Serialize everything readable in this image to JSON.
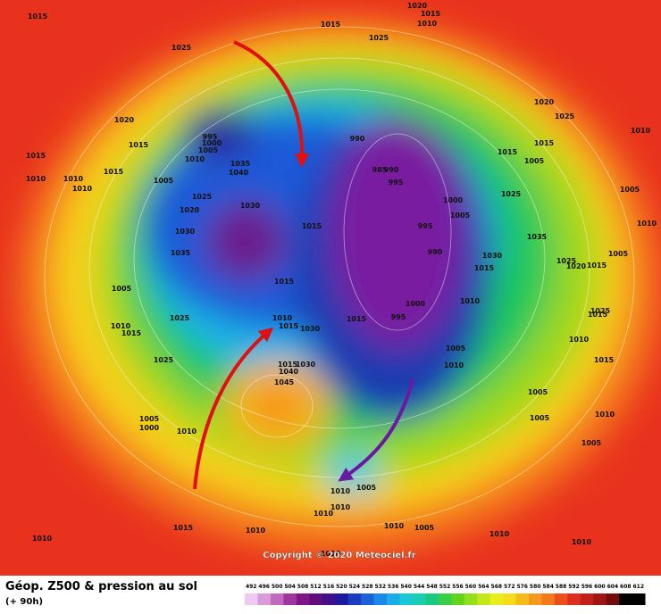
{
  "map": {
    "isobar_labels": [
      "1015",
      "1020",
      "1015",
      "1010",
      "1015",
      "1025",
      "1025",
      "1020",
      "1015",
      "1015",
      "1010",
      "1015",
      "1010",
      "1010",
      "1005",
      "995",
      "1000",
      "1005",
      "1010",
      "1035",
      "1040",
      "1025",
      "1020",
      "1030",
      "1030",
      "1035",
      "1015",
      "1015",
      "1005",
      "1025",
      "1010",
      "1015",
      "1025",
      "1010",
      "1015",
      "1030",
      "1015",
      "1030",
      "1040",
      "1045",
      "1005",
      "1000",
      "1010",
      "990",
      "985",
      "990",
      "995",
      "1000",
      "1005",
      "995",
      "990",
      "1000",
      "995",
      "1015",
      "1015",
      "1010",
      "1005",
      "1005",
      "1005",
      "1010",
      "1005",
      "1015",
      "1005",
      "1025",
      "1035",
      "1030",
      "1025",
      "1020",
      "1015",
      "1005",
      "1020",
      "1025",
      "1015",
      "1010",
      "1005",
      "1010",
      "1025",
      "1015",
      "1015",
      "1010",
      "1010",
      "1010",
      "1005",
      "1010",
      "1010",
      "1010",
      "1005",
      "1010",
      "1015",
      "1010",
      "1010",
      "1010",
      "1010"
    ]
  },
  "footer": {
    "title": "Géop. Z500 & pression au sol",
    "lead_time": "(+ 90h)",
    "copyright": "Copyright © 2020 Meteociel.fr"
  },
  "legend": {
    "ticks": [
      492,
      496,
      500,
      504,
      508,
      512,
      516,
      520,
      524,
      528,
      532,
      536,
      540,
      544,
      548,
      552,
      556,
      560,
      564,
      568,
      572,
      576,
      580,
      584,
      588,
      592,
      596,
      600,
      604,
      608,
      612
    ]
  }
}
